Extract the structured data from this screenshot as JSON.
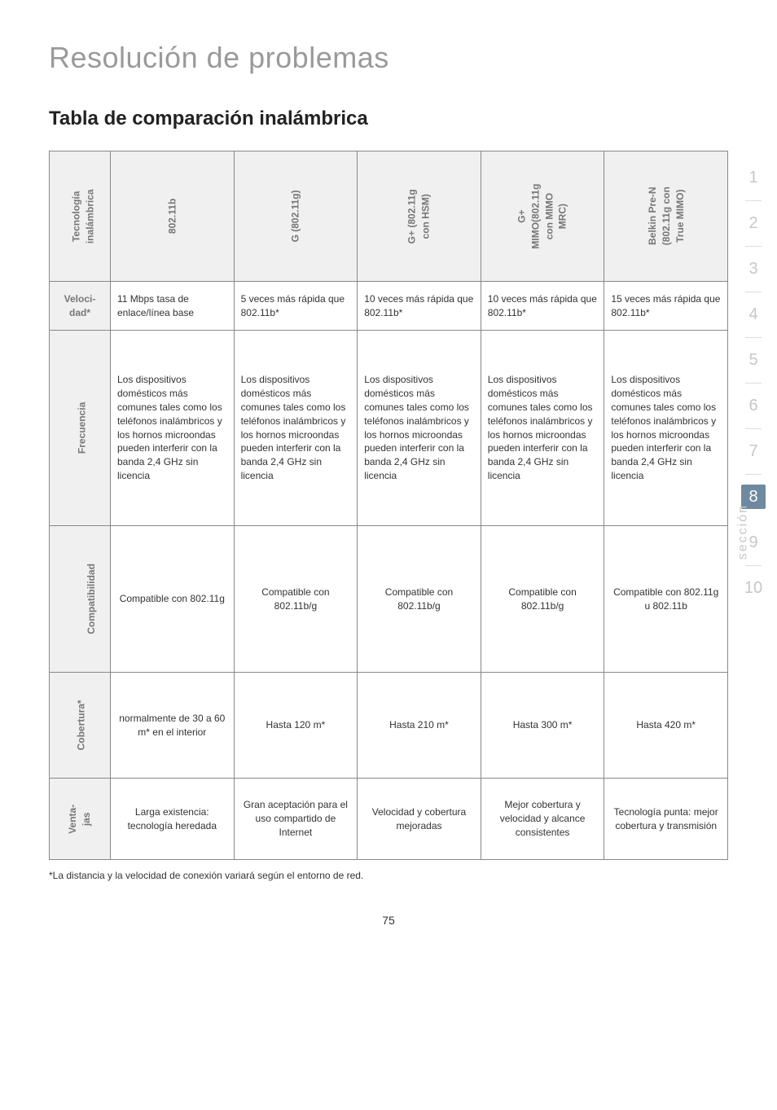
{
  "page_header": "Resolución de problemas",
  "section_header": "Tabla de comparación inalámbrica",
  "page_number": "75",
  "footnote": "*La distancia y la velocidad de conexión variará según el entorno de red.",
  "sidebar": {
    "label": "sección",
    "items": [
      "1",
      "2",
      "3",
      "4",
      "5",
      "6",
      "7",
      "8",
      "9",
      "10"
    ],
    "active_index": 7,
    "active_bg": "#6f8aa0",
    "inactive_color": "#c7c7c7"
  },
  "table": {
    "row_labels": {
      "tech": "Tecnología\ninalámbrica",
      "veloc": "Veloci-\ndad*",
      "freq": "Frecuencia",
      "compat": "Compatibilidad",
      "cober": "Cobertura*",
      "venta": "Venta-\njas"
    },
    "columns": [
      {
        "tech": "802.11b",
        "veloc": "11 Mbps tasa de enlace/línea base",
        "freq": "Los dispositivos domésticos más comunes tales como los teléfonos inalámbricos y los hornos microondas pueden interferir con la banda 2,4 GHz sin licencia",
        "compat": "Compatible con 802.11g",
        "cober": "normalmente de 30 a 60 m* en el interior",
        "venta": "Larga existencia: tecnología heredada"
      },
      {
        "tech": "G (802.11g)",
        "veloc": "5 veces más rápida que 802.11b*",
        "freq": "Los dispositivos domésticos más comunes tales como los teléfonos inalámbricos y los hornos microondas pueden interferir con la banda 2,4 GHz sin licencia",
        "compat": "Compatible con 802.11b/g",
        "cober": "Hasta 120 m*",
        "venta": "Gran aceptación para el uso compartido de Internet"
      },
      {
        "tech": "G+ (802.11g\ncon HSM)",
        "veloc": "10 veces más rápida que 802.11b*",
        "freq": "Los dispositivos domésticos más comunes tales como los teléfonos inalámbricos y los hornos microondas pueden interferir con la banda 2,4 GHz sin licencia",
        "compat": "Compatible con 802.11b/g",
        "cober": "Hasta 210 m*",
        "venta": "Velocidad y cobertura mejoradas"
      },
      {
        "tech": "G+\nMIMO(802.11g\ncon MIMO\nMRC)",
        "veloc": "10 veces más rápida que 802.11b*",
        "freq": "Los dispositivos domésticos más comunes tales como los teléfonos inalámbricos y los hornos microondas pueden interferir con la banda 2,4 GHz sin licencia",
        "compat": "Compatible con 802.11b/g",
        "cober": "Hasta 300 m*",
        "venta": "Mejor cobertura y velocidad y alcance consistentes"
      },
      {
        "tech": "Belkin Pre-N\n(802.11g con\nTrue MIMO)",
        "veloc": "15 veces más rápida que 802.11b*",
        "freq": "Los dispositivos domésticos más comunes tales como los teléfonos inalámbricos y los hornos microondas pueden interferir con la banda 2,4 GHz sin licencia",
        "compat": "Compatible con 802.11g u 802.11b",
        "cober": "Hasta 420 m*",
        "venta": "Tecnología punta: mejor cobertura y transmisión"
      }
    ]
  },
  "styling": {
    "header_bg": "#f0f0f0",
    "label_bg": "#f0f0f0",
    "border_color": "#888888",
    "page_title_color": "#9a9a9a",
    "text_color": "#333333",
    "rotated_label_color": "#777777"
  }
}
